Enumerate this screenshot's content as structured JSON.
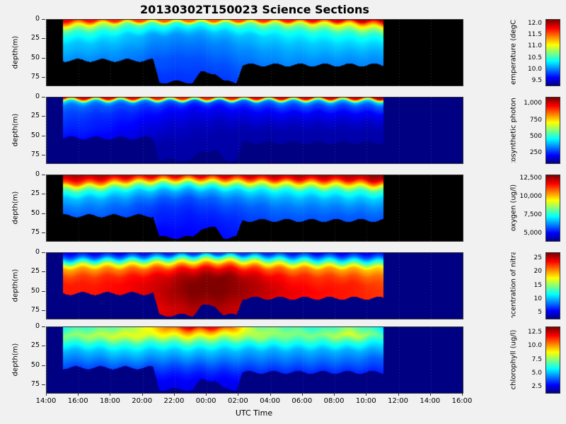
{
  "title": "20130302T150023 Science Sections",
  "chart_data": {
    "type": "heatmap",
    "x_axis": {
      "label": "UTC Time",
      "ticks": [
        "14:00",
        "16:00",
        "18:00",
        "20:00",
        "22:00",
        "00:00",
        "02:00",
        "04:00",
        "06:00",
        "08:00",
        "10:00",
        "12:00",
        "14:00",
        "16:00"
      ]
    },
    "y_axis": {
      "label": "depth(m)",
      "ticks": [
        0,
        25,
        50,
        75
      ],
      "max_depth": 85
    },
    "coverage": {
      "t_start_frac": 0.0385,
      "t_end_frac": 0.808,
      "max_depth_envelope": [
        [
          0.0385,
          52
        ],
        [
          0.255,
          52
        ],
        [
          0.27,
          80
        ],
        [
          0.35,
          80
        ],
        [
          0.37,
          68
        ],
        [
          0.405,
          68
        ],
        [
          0.425,
          80
        ],
        [
          0.455,
          80
        ],
        [
          0.47,
          58
        ],
        [
          0.808,
          58
        ]
      ]
    },
    "grid": {
      "col_fracs": [
        0,
        0.1,
        0.2,
        0.3,
        0.4,
        0.5,
        0.6,
        0.7,
        0.8,
        0.9,
        1
      ],
      "depths": [
        0,
        5,
        10,
        15,
        20,
        30,
        40,
        50,
        60,
        70,
        85
      ]
    },
    "sections": [
      {
        "name": "temperature",
        "colorbar_label": "temperature (degC)",
        "colorbar_ticks": [
          "12.0",
          "11.5",
          "11.0",
          "10.5",
          "10.0",
          "9.5"
        ],
        "colorbar_tick_values": [
          12.0,
          11.5,
          11.0,
          10.5,
          10.0,
          9.5
        ],
        "vmin": 9.3,
        "vmax": 12.2,
        "nodata_color": "#000000",
        "values": [
          [
            11.9,
            11.8,
            11.7,
            11.6,
            11.55,
            11.6,
            11.7,
            11.8,
            11.85,
            12.0,
            12.15
          ],
          [
            11.4,
            11.1,
            10.75,
            10.6,
            10.5,
            10.6,
            10.75,
            10.9,
            11.05,
            11.2,
            11.6
          ],
          [
            10.9,
            10.75,
            10.5,
            10.4,
            10.3,
            10.4,
            10.5,
            10.6,
            10.75,
            10.9,
            11.05
          ],
          [
            10.6,
            10.5,
            10.4,
            10.25,
            10.17,
            10.25,
            10.4,
            10.45,
            10.5,
            10.6,
            10.75
          ],
          [
            10.45,
            10.4,
            10.25,
            10.1,
            10.08,
            10.17,
            10.25,
            10.35,
            10.4,
            10.45,
            10.5
          ],
          [
            10.25,
            10.22,
            10.17,
            10.03,
            10.0,
            10.05,
            10.17,
            10.22,
            10.25,
            10.29,
            10.3
          ],
          [
            10.17,
            10.14,
            10.08,
            9.97,
            9.94,
            10.0,
            10.08,
            10.14,
            10.17,
            10.17,
            10.17
          ],
          [
            10.08,
            10.05,
            10.03,
            9.9,
            9.88,
            9.94,
            10.03,
            10.08,
            10.08,
            10.08,
            10.08
          ],
          [
            10.03,
            10.03,
            9.97,
            9.88,
            9.85,
            9.88,
            9.97,
            10.03,
            10.03,
            10.03,
            10.03
          ],
          [
            9.97,
            9.97,
            9.91,
            9.82,
            9.82,
            9.85,
            9.91,
            9.97,
            9.97,
            9.97,
            9.97
          ],
          [
            9.88,
            9.88,
            9.88,
            9.79,
            9.79,
            9.79,
            9.88,
            9.88,
            9.88,
            9.88,
            9.88
          ]
        ]
      },
      {
        "name": "photon-flux",
        "colorbar_label": "photosynthetic photon flux",
        "colorbar_ticks": [
          "1,000",
          "750",
          "500",
          "250"
        ],
        "colorbar_tick_values": [
          1000,
          750,
          500,
          250
        ],
        "vmin": 100,
        "vmax": 1100,
        "nodata_color": "#000083",
        "values": [
          [
            1000,
            1000,
            980,
            950,
            950,
            950,
            980,
            1000,
            1000,
            1000,
            1060
          ],
          [
            450,
            400,
            380,
            350,
            320,
            320,
            350,
            380,
            400,
            400,
            450
          ],
          [
            350,
            320,
            300,
            280,
            250,
            250,
            280,
            300,
            300,
            300,
            320
          ],
          [
            320,
            300,
            280,
            250,
            220,
            220,
            240,
            260,
            260,
            260,
            280
          ],
          [
            300,
            280,
            260,
            230,
            200,
            200,
            210,
            220,
            220,
            220,
            230
          ],
          [
            280,
            260,
            240,
            200,
            180,
            170,
            180,
            180,
            180,
            180,
            180
          ],
          [
            260,
            250,
            220,
            180,
            160,
            150,
            150,
            150,
            150,
            150,
            150
          ],
          [
            240,
            230,
            200,
            160,
            150,
            140,
            140,
            140,
            140,
            140,
            140
          ],
          [
            140,
            140,
            140,
            140,
            140,
            140,
            140,
            140,
            140,
            140,
            140
          ],
          [
            140,
            140,
            140,
            140,
            140,
            140,
            140,
            140,
            140,
            140,
            140
          ],
          [
            140,
            140,
            140,
            140,
            140,
            140,
            140,
            140,
            140,
            140,
            140
          ]
        ]
      },
      {
        "name": "oxygen",
        "colorbar_label": "oxygen (ug/l)",
        "colorbar_ticks": [
          "12,500",
          "10,000",
          "7,500",
          "5,000"
        ],
        "colorbar_tick_values": [
          12500,
          10000,
          7500,
          5000
        ],
        "vmin": 4000,
        "vmax": 13000,
        "nodata_color": "#000000",
        "values": [
          [
            12550,
            12550,
            12370,
            12100,
            12100,
            12280,
            12370,
            12550,
            12550,
            12550,
            12900
          ],
          [
            12100,
            11920,
            11200,
            10480,
            10300,
            10750,
            11200,
            11650,
            11650,
            11920,
            12550
          ],
          [
            11200,
            10750,
            9400,
            8500,
            8320,
            8950,
            9400,
            9850,
            10120,
            10300,
            11200
          ],
          [
            9400,
            8950,
            8050,
            7420,
            7150,
            7600,
            8050,
            8500,
            8680,
            8950,
            9400
          ],
          [
            8050,
            7780,
            7150,
            6700,
            6520,
            6880,
            7150,
            7420,
            7600,
            7780,
            8050
          ],
          [
            6880,
            6700,
            6430,
            5980,
            5800,
            6160,
            6430,
            6700,
            6700,
            6880,
            6970
          ],
          [
            6340,
            6250,
            5980,
            5620,
            5530,
            5800,
            5980,
            6250,
            6250,
            6340,
            6430
          ],
          [
            5980,
            5980,
            5800,
            5440,
            5350,
            5530,
            5800,
            5980,
            5980,
            5980,
            6070
          ],
          [
            5800,
            5800,
            5620,
            5350,
            5260,
            5350,
            5620,
            5800,
            5800,
            5800,
            5800
          ],
          [
            5620,
            5620,
            5530,
            5170,
            5170,
            5260,
            5530,
            5620,
            5620,
            5620,
            5620
          ],
          [
            5440,
            5440,
            5440,
            5080,
            5080,
            5170,
            5440,
            5440,
            5440,
            5440,
            5440
          ]
        ]
      },
      {
        "name": "nitrate",
        "colorbar_label": "concentration of nitrate",
        "colorbar_ticks": [
          "25",
          "20",
          "15",
          "10",
          "5"
        ],
        "colorbar_tick_values": [
          25,
          20,
          15,
          10,
          5
        ],
        "vmin": 3,
        "vmax": 27,
        "nodata_color": "#000083",
        "values": [
          [
            5.9,
            5.9,
            6.1,
            6.6,
            7.3,
            7.8,
            7.3,
            6.6,
            6.1,
            5.9,
            5.9
          ],
          [
            7.8,
            8.3,
            9,
            10.2,
            12.6,
            13.8,
            11.4,
            9.7,
            9,
            8.3,
            7.8
          ],
          [
            11.4,
            12.6,
            13.8,
            15,
            17.4,
            18.6,
            16.2,
            13.8,
            12.6,
            12.1,
            11.4
          ],
          [
            16.2,
            17.4,
            17.9,
            19.3,
            21,
            22.2,
            19.8,
            17.9,
            16.9,
            16.2,
            15
          ],
          [
            19.8,
            20.3,
            21,
            22.2,
            24.1,
            24.6,
            22.7,
            21,
            20.3,
            19.8,
            18.6
          ],
          [
            22.2,
            22.7,
            23.4,
            24.6,
            26.3,
            27,
            25.1,
            23.4,
            22.7,
            22.2,
            21
          ],
          [
            23.4,
            23.4,
            24.1,
            25.1,
            27,
            27,
            25.8,
            24.1,
            23.4,
            23.4,
            22.2
          ],
          [
            23.4,
            23.6,
            24.1,
            25.3,
            27,
            27,
            25.8,
            24.6,
            23.9,
            23.4,
            22.7
          ],
          [
            23.4,
            23.4,
            24.1,
            25.1,
            26.5,
            26.5,
            25.3,
            24.1,
            23.6,
            23.4,
            22.7
          ],
          [
            23.4,
            23.4,
            23.9,
            24.6,
            25.8,
            25.8,
            25.1,
            23.9,
            23.4,
            23.4,
            22.7
          ],
          [
            23.4,
            23.4,
            23.9,
            24.6,
            25.3,
            25.3,
            24.6,
            23.9,
            23.4,
            23.4,
            22.7
          ]
        ]
      },
      {
        "name": "chlorophyll",
        "colorbar_label": "chlorophyll (ug/l)",
        "colorbar_ticks": [
          "12.5",
          "10.0",
          "7.5",
          "5.0",
          "2.5"
        ],
        "colorbar_tick_values": [
          12.5,
          10.0,
          7.5,
          5.0,
          2.5
        ],
        "vmin": 1.5,
        "vmax": 13.5,
        "nodata_color": "#000083",
        "values": [
          [
            6.3,
            6.9,
            7.5,
            9.9,
            12.3,
            11.7,
            7.5,
            6.9,
            6.3,
            7.5,
            5.7
          ],
          [
            6.9,
            7.5,
            8.1,
            9.3,
            10.5,
            9.9,
            8.1,
            7.5,
            6.9,
            8.1,
            6.3
          ],
          [
            7.5,
            8.1,
            8.7,
            8.7,
            9.3,
            8.7,
            8.1,
            7.5,
            7.5,
            8.7,
            6.9
          ],
          [
            6.9,
            7.5,
            8.1,
            7.5,
            8.1,
            7.5,
            7.5,
            6.9,
            6.9,
            7.5,
            6.3
          ],
          [
            6.3,
            6.5,
            6.9,
            6.5,
            6.9,
            6.5,
            6.3,
            6.3,
            6.3,
            6.5,
            5.7
          ],
          [
            5.1,
            5.3,
            5.7,
            5.3,
            5.5,
            5.3,
            5.1,
            5.1,
            5.1,
            5.1,
            4.9
          ],
          [
            4.5,
            4.6,
            4.9,
            4.6,
            4.7,
            4.6,
            4.5,
            4.5,
            4.5,
            4.5,
            4.1
          ],
          [
            3.9,
            3.9,
            4.1,
            3.9,
            3.9,
            3.9,
            3.9,
            3.9,
            3.9,
            3.9,
            3.7
          ],
          [
            3.3,
            3.3,
            3.4,
            3.3,
            3.3,
            3.3,
            3.3,
            3.3,
            3.3,
            3.3,
            3.2
          ],
          [
            2.9,
            2.9,
            3.1,
            2.9,
            2.9,
            2.9,
            2.9,
            2.9,
            2.9,
            2.9,
            2.9
          ],
          [
            2.7,
            2.7,
            2.7,
            2.7,
            2.7,
            2.7,
            2.7,
            2.7,
            2.7,
            2.7,
            2.7
          ]
        ]
      }
    ]
  }
}
